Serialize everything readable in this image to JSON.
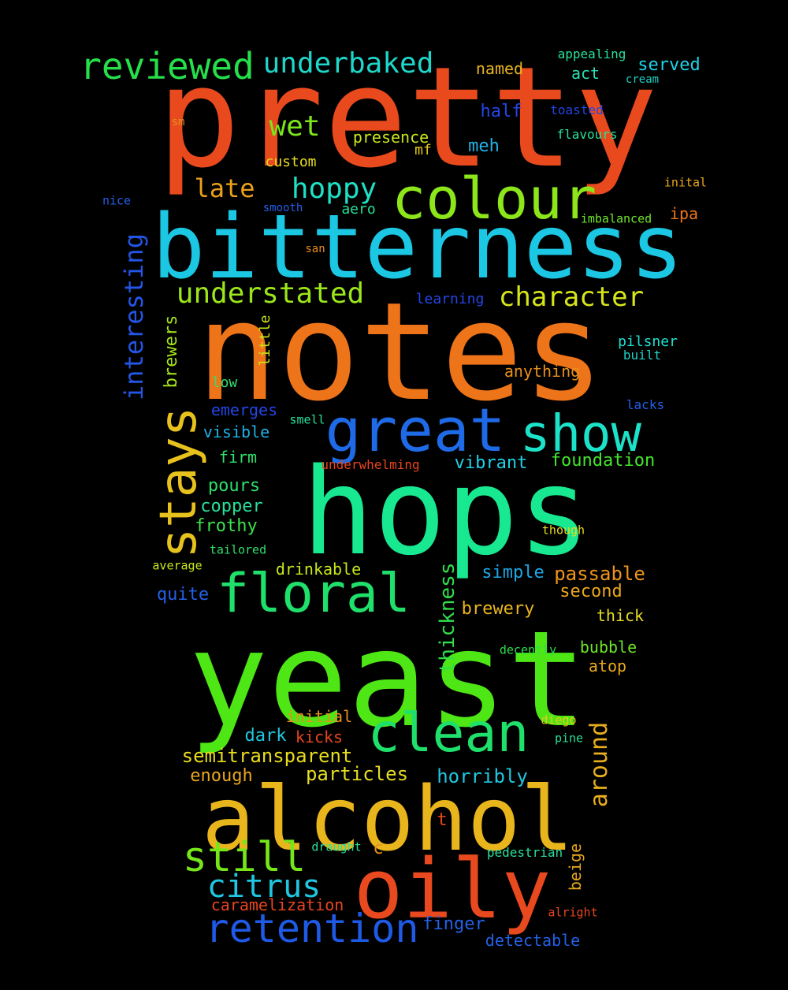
{
  "background": "#000000",
  "words": [
    {
      "text": "pretty",
      "color": "#e84a1e"
    },
    {
      "text": "notes",
      "color": "#ee7419"
    },
    {
      "text": "yeast",
      "color": "#4ee615"
    },
    {
      "text": "hops",
      "color": "#18e890"
    },
    {
      "text": "bitterness",
      "color": "#1cc7e3"
    },
    {
      "text": "alcohol",
      "color": "#e8b51d"
    },
    {
      "text": "oily",
      "color": "#e8491e"
    },
    {
      "text": "colour",
      "color": "#8ce61a"
    },
    {
      "text": "great",
      "color": "#1f6ae6"
    },
    {
      "text": "show",
      "color": "#1ce2c9"
    },
    {
      "text": "floral",
      "color": "#1fe06a"
    },
    {
      "text": "clean",
      "color": "#1fe06a"
    },
    {
      "text": "stays",
      "color": "#e8c21c"
    },
    {
      "text": "retention",
      "color": "#1f5ae6"
    },
    {
      "text": "still",
      "color": "#74e61a"
    },
    {
      "text": "reviewed",
      "color": "#25e04b"
    },
    {
      "text": "underbaked",
      "color": "#1ed6c9"
    },
    {
      "text": "citrus",
      "color": "#1fc7e0"
    },
    {
      "text": "hoppy",
      "color": "#1fe0c5"
    },
    {
      "text": "understated",
      "color": "#9be61a"
    },
    {
      "text": "character",
      "color": "#d7e61a"
    },
    {
      "text": "interesting",
      "color": "#2456e6"
    },
    {
      "text": "wet",
      "color": "#7be61a"
    },
    {
      "text": "late",
      "color": "#eba01c"
    },
    {
      "text": "around",
      "color": "#e8ae1d"
    },
    {
      "text": "thickness",
      "color": "#2fe04b"
    },
    {
      "text": "semitransparent",
      "color": "#e8dc1c"
    },
    {
      "text": "particles",
      "color": "#e6dc22"
    },
    {
      "text": "horribly",
      "color": "#1fc7e0"
    },
    {
      "text": "passable",
      "color": "#ee9419"
    },
    {
      "text": "foundation",
      "color": "#43e62a"
    },
    {
      "text": "vibrant",
      "color": "#1fd1e6"
    },
    {
      "text": "simple",
      "color": "#1fa6e6"
    },
    {
      "text": "second",
      "color": "#e8a71d"
    },
    {
      "text": "brewery",
      "color": "#e8b51d"
    },
    {
      "text": "pours",
      "color": "#2ee06c"
    },
    {
      "text": "copper",
      "color": "#28e09a"
    },
    {
      "text": "frothy",
      "color": "#3be04b"
    },
    {
      "text": "quite",
      "color": "#2460e6"
    },
    {
      "text": "enough",
      "color": "#e8a71d"
    },
    {
      "text": "dark",
      "color": "#1fc7e0"
    },
    {
      "text": "initial",
      "color": "#e88f1d"
    },
    {
      "text": "kicks",
      "color": "#e8451e"
    },
    {
      "text": "caramelization",
      "color": "#e8451e"
    },
    {
      "text": "finger",
      "color": "#2460e6"
    },
    {
      "text": "detectable",
      "color": "#2460e6"
    },
    {
      "text": "anything",
      "color": "#e88f1d"
    },
    {
      "text": "emerges",
      "color": "#2446e6"
    },
    {
      "text": "visible",
      "color": "#1fb2e6"
    },
    {
      "text": "firm",
      "color": "#2ee06c"
    },
    {
      "text": "drinkable",
      "color": "#c9e61a"
    },
    {
      "text": "brewers",
      "color": "#a6e61a"
    },
    {
      "text": "little",
      "color": "#c9e61a"
    },
    {
      "text": "half",
      "color": "#2446e6"
    },
    {
      "text": "meh",
      "color": "#1fb2e6"
    },
    {
      "text": "presence",
      "color": "#c9e61a"
    },
    {
      "text": "custom",
      "color": "#e6dc22"
    },
    {
      "text": "mf",
      "color": "#e6c91c"
    },
    {
      "text": "named",
      "color": "#e8b51d"
    },
    {
      "text": "act",
      "color": "#28e0b0"
    },
    {
      "text": "served",
      "color": "#1fd1e6"
    },
    {
      "text": "beige",
      "color": "#e8a71d"
    },
    {
      "text": "c",
      "color": "#e88f1d"
    },
    {
      "text": "t",
      "color": "#e8451e"
    },
    {
      "text": "pilsner",
      "color": "#1fe0d0"
    },
    {
      "text": "bubble",
      "color": "#6ee62a"
    },
    {
      "text": "atop",
      "color": "#e8a71d"
    },
    {
      "text": "thick",
      "color": "#e6dc22"
    },
    {
      "text": "ipa",
      "color": "#ee7419"
    },
    {
      "text": "learning",
      "color": "#2446e6"
    },
    {
      "text": "low",
      "color": "#2ee06c"
    },
    {
      "text": "aero",
      "color": "#28e09a"
    },
    {
      "text": "appealing",
      "color": "#28e09a"
    },
    {
      "text": "cream",
      "color": "#1fd1c5"
    },
    {
      "text": "toasted",
      "color": "#2446e6"
    },
    {
      "text": "flavours",
      "color": "#28e09a"
    },
    {
      "text": "inital",
      "color": "#e8a71d"
    },
    {
      "text": "imbalanced",
      "color": "#6ee62a"
    },
    {
      "text": "nice",
      "color": "#2460e6"
    },
    {
      "text": "smooth",
      "color": "#2460e6"
    },
    {
      "text": "sm",
      "color": "#e88f1d"
    },
    {
      "text": "san",
      "color": "#e88f1d"
    },
    {
      "text": "built",
      "color": "#1fd1c5"
    },
    {
      "text": "lacks",
      "color": "#2460e6"
    },
    {
      "text": "smell",
      "color": "#28e09a"
    },
    {
      "text": "underwhelming",
      "color": "#e8451e"
    },
    {
      "text": "though",
      "color": "#e6dc22"
    },
    {
      "text": "tailored",
      "color": "#2ee06c"
    },
    {
      "text": "average",
      "color": "#c9e61a"
    },
    {
      "text": "decently",
      "color": "#2ee04b"
    },
    {
      "text": "diego",
      "color": "#e6c91c"
    },
    {
      "text": "pine",
      "color": "#28e09a"
    },
    {
      "text": "draught",
      "color": "#28e09a"
    },
    {
      "text": "pedestrian",
      "color": "#28e09a"
    },
    {
      "text": "alright",
      "color": "#e8451e"
    }
  ]
}
